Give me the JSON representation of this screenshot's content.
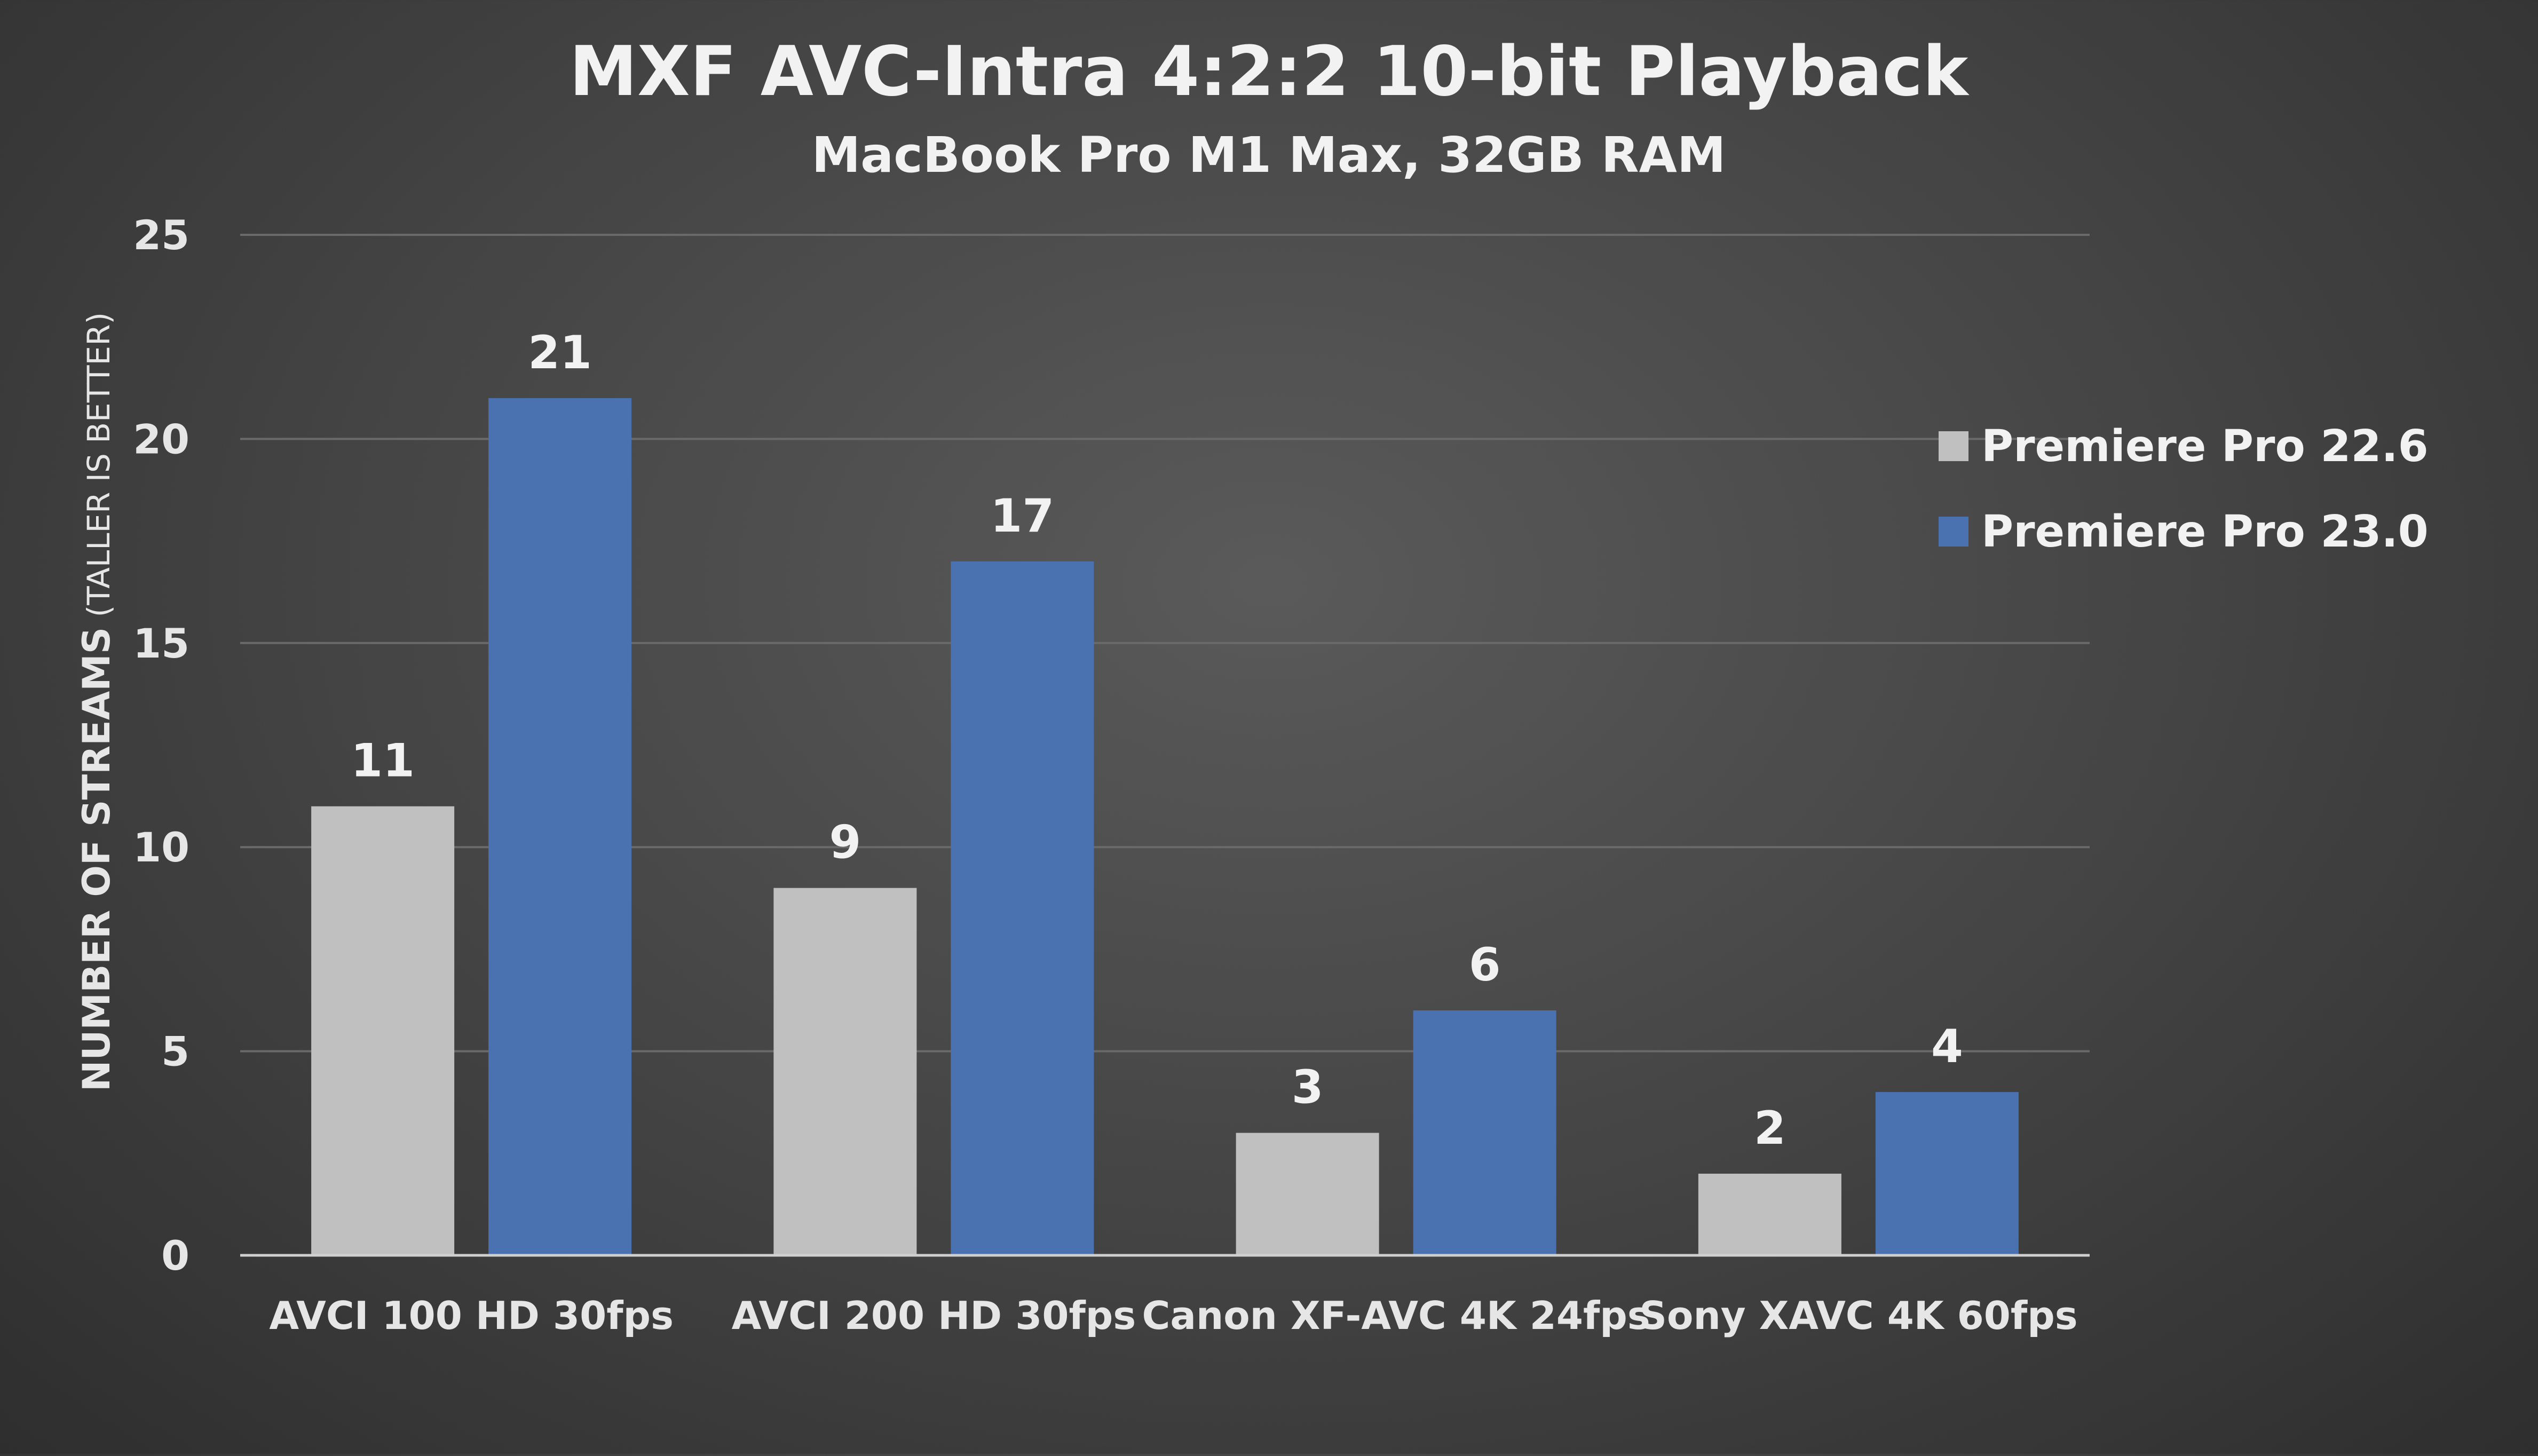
{
  "chart_data": {
    "type": "bar",
    "title": "MXF AVC-Intra 4:2:2 10-bit Playback",
    "subtitle": "MacBook Pro M1 Max, 32GB RAM",
    "ylabel_main": "NUMBER OF STREAMS",
    "ylabel_note": " (TALLER IS BETTER)",
    "xlabel": "",
    "ylim": [
      0,
      25
    ],
    "yticks": [
      0,
      5,
      10,
      15,
      20,
      25
    ],
    "grid": true,
    "legend_position": "right",
    "categories": [
      "AVCI 100 HD 30fps",
      "AVCI 200 HD 30fps",
      "Canon XF-AVC 4K 24fps",
      "Sony XAVC 4K 60fps"
    ],
    "series": [
      {
        "name": "Premiere Pro 22.6",
        "color": "#c0c0c0",
        "values": [
          11,
          9,
          3,
          2
        ]
      },
      {
        "name": "Premiere Pro 23.0",
        "color": "#4a72b0",
        "values": [
          21,
          17,
          6,
          4
        ]
      }
    ]
  }
}
